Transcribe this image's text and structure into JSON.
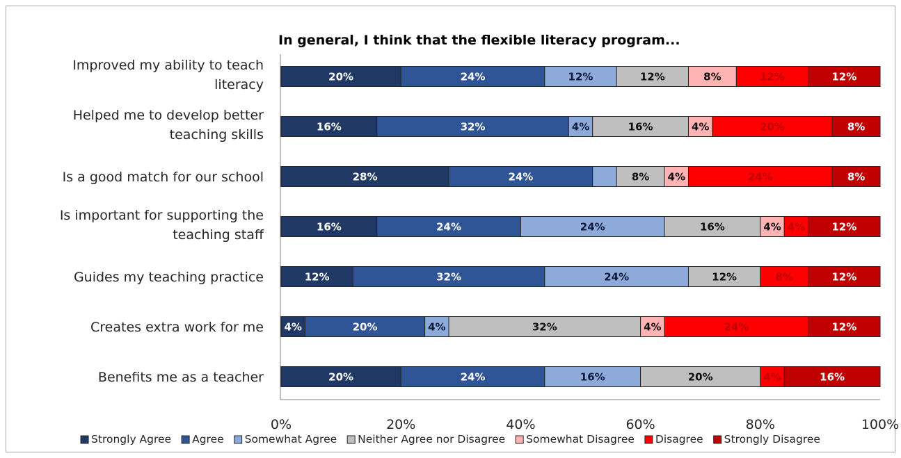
{
  "chart_data": {
    "type": "bar",
    "orientation": "horizontal",
    "stacked": true,
    "percent": true,
    "title": "In general, I think that the flexible literacy program...",
    "categories": [
      [
        "Improved my ability to teach",
        "literacy"
      ],
      [
        "Helped me to develop better",
        "teaching skills"
      ],
      [
        "Is a good match for our school"
      ],
      [
        "Is important for supporting the",
        "teaching staff"
      ],
      [
        "Guides my teaching practice"
      ],
      [
        "Creates extra work for me"
      ],
      [
        "Benefits me as a teacher"
      ]
    ],
    "series": [
      {
        "name": "Strongly Agree",
        "color": "#203864",
        "label_color": "#ffffff",
        "values": [
          20,
          16,
          28,
          16,
          12,
          4,
          20
        ],
        "labels": [
          "20%",
          "16%",
          "28%",
          "16%",
          "12%",
          "4%",
          "20%"
        ]
      },
      {
        "name": "Agree",
        "color": "#2f5597",
        "label_color": "#ffffff",
        "values": [
          24,
          32,
          24,
          24,
          32,
          20,
          24
        ],
        "labels": [
          "24%",
          "32%",
          "24%",
          "24%",
          "32%",
          "20%",
          "24%"
        ]
      },
      {
        "name": "Somewhat Agree",
        "color": "#8eaadb",
        "label_color": "#0d1b3a",
        "values": [
          12,
          4,
          4,
          24,
          24,
          4,
          16
        ],
        "labels": [
          "12%",
          "4%",
          "",
          "24%",
          "24%",
          "4%",
          "16%"
        ]
      },
      {
        "name": "Neither Agree nor Disagree",
        "color": "#bfbfbf",
        "label_color": "#0d0d0d",
        "values": [
          12,
          16,
          8,
          16,
          12,
          32,
          20
        ],
        "labels": [
          "12%",
          "16%",
          "8%",
          "16%",
          "12%",
          "32%",
          "20%"
        ]
      },
      {
        "name": "Somewhat Disagree",
        "color": "#ffb3b3",
        "label_color": "#0d0d0d",
        "values": [
          8,
          4,
          4,
          4,
          0,
          4,
          0
        ],
        "labels": [
          "8%",
          "4%",
          "4%",
          "4%",
          "",
          "4%",
          ""
        ]
      },
      {
        "name": "Disagree",
        "color": "#ff0000",
        "label_color": "#c00000",
        "values": [
          12,
          20,
          24,
          4,
          8,
          24,
          4
        ],
        "labels": [
          "12%",
          "20%",
          "24%",
          "4%",
          "8%",
          "24%",
          "4%"
        ]
      },
      {
        "name": "Strongly Disagree",
        "color": "#c00000",
        "label_color": "#ffffff",
        "values": [
          12,
          8,
          8,
          12,
          12,
          12,
          16
        ],
        "labels": [
          "12%",
          "8%",
          "8%",
          "12%",
          "12%",
          "12%",
          "16%"
        ]
      }
    ],
    "xlim": [
      0,
      100
    ],
    "xticks": [
      "0%",
      "20%",
      "40%",
      "60%",
      "80%",
      "100%"
    ],
    "grid": false,
    "legend": "bottom"
  }
}
